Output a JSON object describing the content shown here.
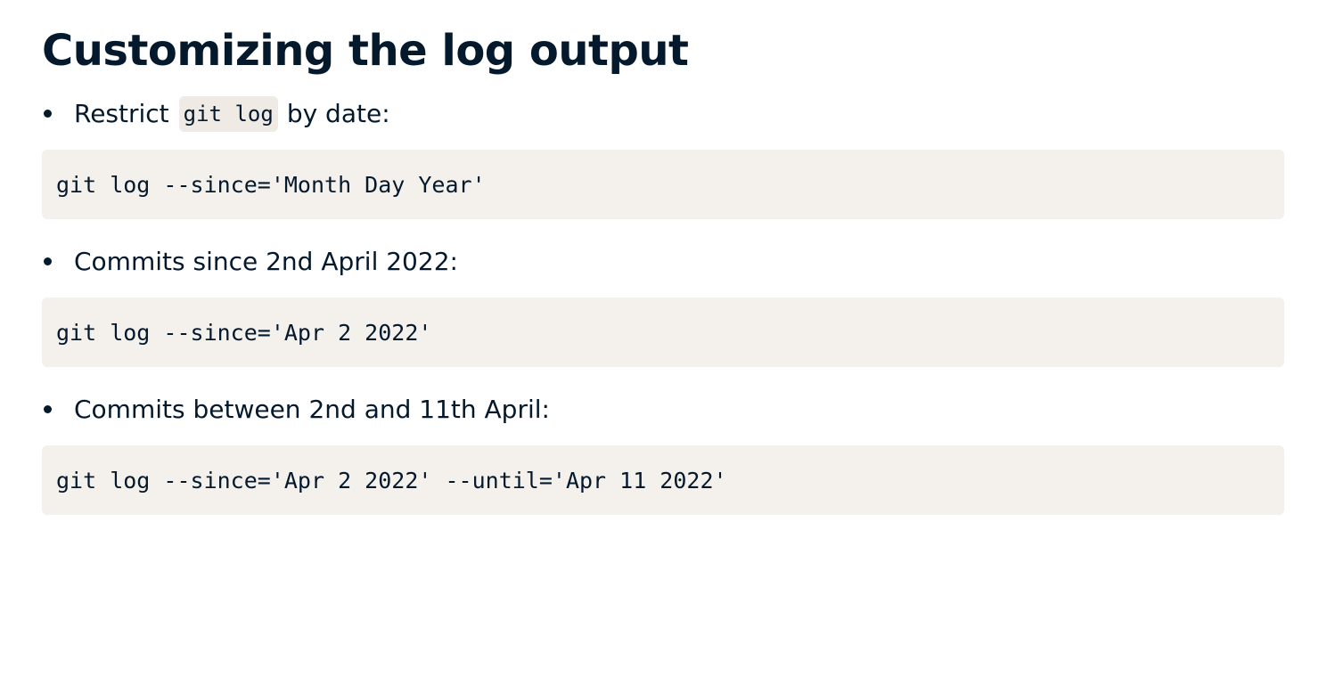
{
  "slide": {
    "title": "Customizing the log output",
    "items": [
      {
        "text_before": "Restrict",
        "inline_code": "git log",
        "text_after": "by date:",
        "code": "git log --since='Month Day Year'"
      },
      {
        "text": "Commits since 2nd April 2022:",
        "code": "git log --since='Apr 2 2022'"
      },
      {
        "text": "Commits between 2nd and 11th April:",
        "code": "git log --since='Apr 2 2022' --until='Apr 11 2022'"
      }
    ]
  },
  "colors": {
    "text": "#05192d",
    "code_background": "#f4f1ec",
    "inline_code_background": "#efebe4",
    "page_background": "#ffffff"
  }
}
